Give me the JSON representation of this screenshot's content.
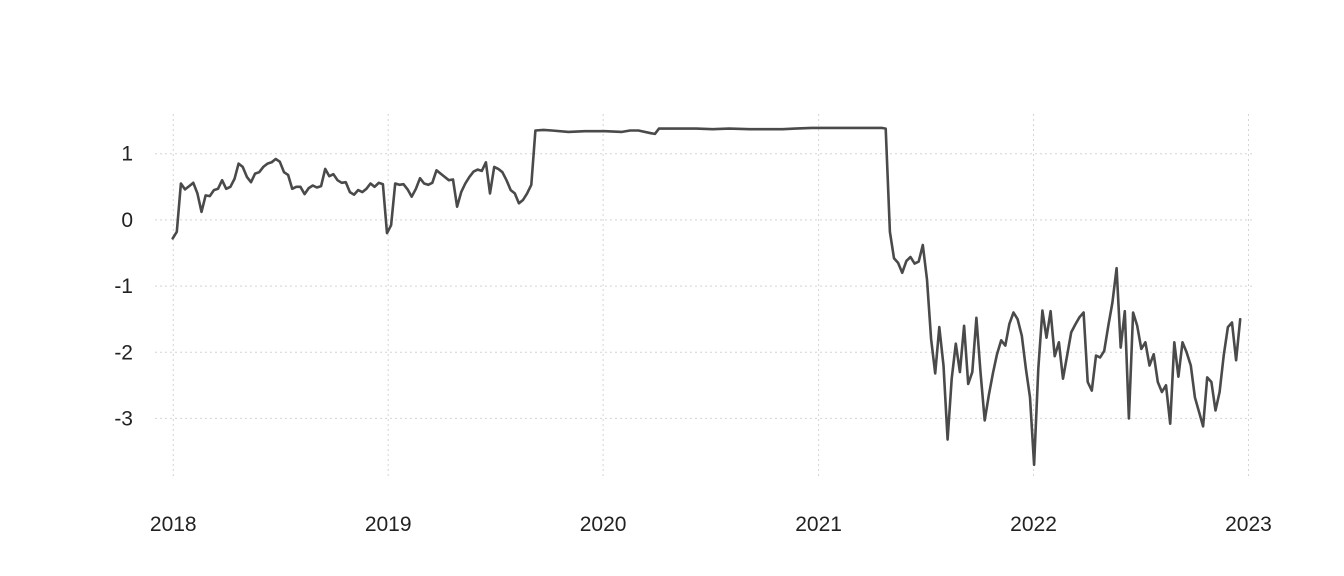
{
  "chart_data": {
    "type": "line",
    "title": "",
    "xlabel": "",
    "ylabel": "",
    "x_ticks": [
      "2018",
      "2019",
      "2020",
      "2021",
      "2022",
      "2023"
    ],
    "y_ticks": [
      "1",
      "0",
      "-1",
      "-2",
      "-3"
    ],
    "xlim": [
      "2017-12-01",
      "2023-01-07"
    ],
    "ylim": [
      -3.9,
      1.6
    ],
    "grid": true,
    "legend": "none",
    "colors": {
      "line": "#4a4a4a",
      "grid": "#d4d4d4",
      "text": "#222222"
    },
    "series": [
      {
        "points": [
          [
            "2017-12-31",
            -0.28
          ],
          [
            "2018-01-07",
            -0.18
          ],
          [
            "2018-01-14",
            0.55
          ],
          [
            "2018-01-21",
            0.46
          ],
          [
            "2018-01-28",
            0.51
          ],
          [
            "2018-02-04",
            0.56
          ],
          [
            "2018-02-11",
            0.4
          ],
          [
            "2018-02-18",
            0.12
          ],
          [
            "2018-02-25",
            0.37
          ],
          [
            "2018-03-04",
            0.36
          ],
          [
            "2018-03-11",
            0.45
          ],
          [
            "2018-03-18",
            0.47
          ],
          [
            "2018-03-25",
            0.6
          ],
          [
            "2018-04-01",
            0.47
          ],
          [
            "2018-04-08",
            0.5
          ],
          [
            "2018-04-15",
            0.62
          ],
          [
            "2018-04-22",
            0.85
          ],
          [
            "2018-04-29",
            0.8
          ],
          [
            "2018-05-06",
            0.65
          ],
          [
            "2018-05-13",
            0.57
          ],
          [
            "2018-05-20",
            0.7
          ],
          [
            "2018-05-27",
            0.72
          ],
          [
            "2018-06-03",
            0.8
          ],
          [
            "2018-06-10",
            0.85
          ],
          [
            "2018-06-17",
            0.87
          ],
          [
            "2018-06-24",
            0.92
          ],
          [
            "2018-07-01",
            0.88
          ],
          [
            "2018-07-08",
            0.72
          ],
          [
            "2018-07-15",
            0.68
          ],
          [
            "2018-07-22",
            0.47
          ],
          [
            "2018-07-29",
            0.5
          ],
          [
            "2018-08-05",
            0.5
          ],
          [
            "2018-08-12",
            0.39
          ],
          [
            "2018-08-19",
            0.48
          ],
          [
            "2018-08-26",
            0.52
          ],
          [
            "2018-09-02",
            0.49
          ],
          [
            "2018-09-09",
            0.51
          ],
          [
            "2018-09-16",
            0.77
          ],
          [
            "2018-09-23",
            0.66
          ],
          [
            "2018-09-30",
            0.69
          ],
          [
            "2018-10-07",
            0.6
          ],
          [
            "2018-10-14",
            0.56
          ],
          [
            "2018-10-21",
            0.57
          ],
          [
            "2018-10-28",
            0.42
          ],
          [
            "2018-11-04",
            0.38
          ],
          [
            "2018-11-11",
            0.45
          ],
          [
            "2018-11-18",
            0.42
          ],
          [
            "2018-11-25",
            0.47
          ],
          [
            "2018-12-02",
            0.55
          ],
          [
            "2018-12-09",
            0.5
          ],
          [
            "2018-12-16",
            0.56
          ],
          [
            "2018-12-23",
            0.54
          ],
          [
            "2018-12-30",
            -0.2
          ],
          [
            "2019-01-06",
            -0.08
          ],
          [
            "2019-01-13",
            0.55
          ],
          [
            "2019-01-20",
            0.53
          ],
          [
            "2019-01-27",
            0.54
          ],
          [
            "2019-02-03",
            0.46
          ],
          [
            "2019-02-10",
            0.35
          ],
          [
            "2019-02-17",
            0.47
          ],
          [
            "2019-02-24",
            0.63
          ],
          [
            "2019-03-03",
            0.55
          ],
          [
            "2019-03-10",
            0.53
          ],
          [
            "2019-03-17",
            0.56
          ],
          [
            "2019-03-24",
            0.75
          ],
          [
            "2019-03-31",
            0.7
          ],
          [
            "2019-04-07",
            0.65
          ],
          [
            "2019-04-14",
            0.6
          ],
          [
            "2019-04-21",
            0.61
          ],
          [
            "2019-04-28",
            0.2
          ],
          [
            "2019-05-05",
            0.42
          ],
          [
            "2019-05-12",
            0.55
          ],
          [
            "2019-05-19",
            0.65
          ],
          [
            "2019-05-26",
            0.73
          ],
          [
            "2019-06-02",
            0.76
          ],
          [
            "2019-06-09",
            0.74
          ],
          [
            "2019-06-16",
            0.87
          ],
          [
            "2019-06-23",
            0.4
          ],
          [
            "2019-06-30",
            0.8
          ],
          [
            "2019-07-07",
            0.77
          ],
          [
            "2019-07-14",
            0.72
          ],
          [
            "2019-07-21",
            0.6
          ],
          [
            "2019-07-28",
            0.45
          ],
          [
            "2019-08-04",
            0.4
          ],
          [
            "2019-08-11",
            0.25
          ],
          [
            "2019-08-18",
            0.3
          ],
          [
            "2019-08-25",
            0.4
          ],
          [
            "2019-09-01",
            0.53
          ],
          [
            "2019-09-08",
            1.35
          ],
          [
            "2019-09-22",
            1.36
          ],
          [
            "2019-10-06",
            1.35
          ],
          [
            "2019-11-03",
            1.33
          ],
          [
            "2019-12-01",
            1.34
          ],
          [
            "2020-01-05",
            1.34
          ],
          [
            "2020-02-02",
            1.33
          ],
          [
            "2020-02-16",
            1.35
          ],
          [
            "2020-03-01",
            1.35
          ],
          [
            "2020-03-22",
            1.31
          ],
          [
            "2020-03-29",
            1.3
          ],
          [
            "2020-04-05",
            1.38
          ],
          [
            "2020-05-03",
            1.38
          ],
          [
            "2020-06-07",
            1.38
          ],
          [
            "2020-07-05",
            1.37
          ],
          [
            "2020-08-02",
            1.38
          ],
          [
            "2020-09-06",
            1.37
          ],
          [
            "2020-10-04",
            1.37
          ],
          [
            "2020-11-01",
            1.37
          ],
          [
            "2020-11-22",
            1.38
          ],
          [
            "2020-12-20",
            1.39
          ],
          [
            "2021-01-17",
            1.39
          ],
          [
            "2021-02-14",
            1.39
          ],
          [
            "2021-03-14",
            1.39
          ],
          [
            "2021-04-18",
            1.39
          ],
          [
            "2021-04-25",
            1.38
          ],
          [
            "2021-05-02",
            -0.18
          ],
          [
            "2021-05-09",
            -0.58
          ],
          [
            "2021-05-16",
            -0.65
          ],
          [
            "2021-05-23",
            -0.8
          ],
          [
            "2021-05-30",
            -0.62
          ],
          [
            "2021-06-06",
            -0.56
          ],
          [
            "2021-06-13",
            -0.66
          ],
          [
            "2021-06-20",
            -0.63
          ],
          [
            "2021-06-27",
            -0.38
          ],
          [
            "2021-07-04",
            -0.9
          ],
          [
            "2021-07-11",
            -1.8
          ],
          [
            "2021-07-18",
            -2.32
          ],
          [
            "2021-07-25",
            -1.62
          ],
          [
            "2021-08-01",
            -2.2
          ],
          [
            "2021-08-08",
            -3.32
          ],
          [
            "2021-08-15",
            -2.4
          ],
          [
            "2021-08-22",
            -1.87
          ],
          [
            "2021-08-29",
            -2.3
          ],
          [
            "2021-09-05",
            -1.6
          ],
          [
            "2021-09-12",
            -2.48
          ],
          [
            "2021-09-19",
            -2.3
          ],
          [
            "2021-09-26",
            -1.48
          ],
          [
            "2021-10-03",
            -2.3
          ],
          [
            "2021-10-10",
            -3.03
          ],
          [
            "2021-10-17",
            -2.65
          ],
          [
            "2021-10-24",
            -2.32
          ],
          [
            "2021-10-31",
            -2.03
          ],
          [
            "2021-11-07",
            -1.82
          ],
          [
            "2021-11-14",
            -1.9
          ],
          [
            "2021-11-21",
            -1.57
          ],
          [
            "2021-11-28",
            -1.4
          ],
          [
            "2021-12-05",
            -1.5
          ],
          [
            "2021-12-12",
            -1.75
          ],
          [
            "2021-12-19",
            -2.25
          ],
          [
            "2021-12-26",
            -2.68
          ],
          [
            "2022-01-02",
            -3.7
          ],
          [
            "2022-01-09",
            -2.25
          ],
          [
            "2022-01-16",
            -1.37
          ],
          [
            "2022-01-23",
            -1.78
          ],
          [
            "2022-01-30",
            -1.38
          ],
          [
            "2022-02-06",
            -2.06
          ],
          [
            "2022-02-13",
            -1.85
          ],
          [
            "2022-02-20",
            -2.4
          ],
          [
            "2022-02-27",
            -2.05
          ],
          [
            "2022-03-06",
            -1.7
          ],
          [
            "2022-03-13",
            -1.58
          ],
          [
            "2022-03-20",
            -1.47
          ],
          [
            "2022-03-27",
            -1.4
          ],
          [
            "2022-04-03",
            -2.45
          ],
          [
            "2022-04-10",
            -2.58
          ],
          [
            "2022-04-17",
            -2.05
          ],
          [
            "2022-04-24",
            -2.08
          ],
          [
            "2022-05-01",
            -1.98
          ],
          [
            "2022-05-08",
            -1.6
          ],
          [
            "2022-05-15",
            -1.25
          ],
          [
            "2022-05-22",
            -0.73
          ],
          [
            "2022-05-29",
            -1.93
          ],
          [
            "2022-06-05",
            -1.38
          ],
          [
            "2022-06-12",
            -3.0
          ],
          [
            "2022-06-19",
            -1.4
          ],
          [
            "2022-06-26",
            -1.6
          ],
          [
            "2022-07-03",
            -1.95
          ],
          [
            "2022-07-10",
            -1.85
          ],
          [
            "2022-07-17",
            -2.2
          ],
          [
            "2022-07-24",
            -2.03
          ],
          [
            "2022-07-31",
            -2.45
          ],
          [
            "2022-08-07",
            -2.6
          ],
          [
            "2022-08-14",
            -2.5
          ],
          [
            "2022-08-21",
            -3.08
          ],
          [
            "2022-08-28",
            -1.85
          ],
          [
            "2022-09-04",
            -2.37
          ],
          [
            "2022-09-11",
            -1.85
          ],
          [
            "2022-09-18",
            -2.0
          ],
          [
            "2022-09-25",
            -2.2
          ],
          [
            "2022-10-02",
            -2.68
          ],
          [
            "2022-10-09",
            -2.9
          ],
          [
            "2022-10-16",
            -3.12
          ],
          [
            "2022-10-23",
            -2.38
          ],
          [
            "2022-10-30",
            -2.45
          ],
          [
            "2022-11-06",
            -2.88
          ],
          [
            "2022-11-13",
            -2.6
          ],
          [
            "2022-11-20",
            -2.05
          ],
          [
            "2022-11-27",
            -1.62
          ],
          [
            "2022-12-04",
            -1.55
          ],
          [
            "2022-12-11",
            -2.12
          ],
          [
            "2022-12-18",
            -1.5
          ]
        ]
      }
    ]
  }
}
